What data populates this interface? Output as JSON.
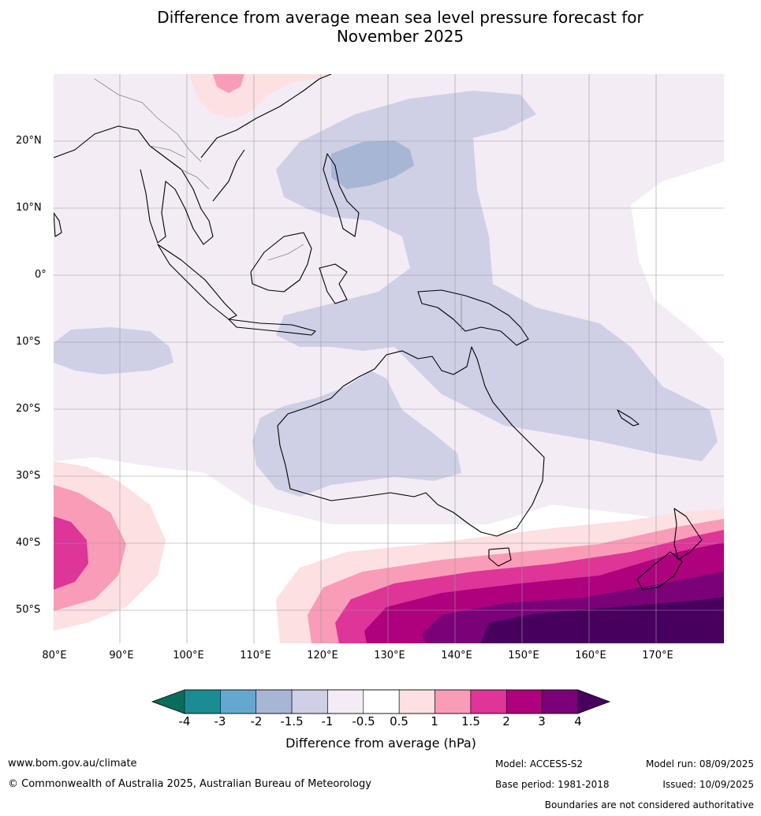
{
  "title": {
    "line1": "Difference from average mean sea level pressure forecast for",
    "line2": "November 2025"
  },
  "map": {
    "lat_labels": [
      "20°N",
      "10°N",
      "0°",
      "10°S",
      "20°S",
      "30°S",
      "40°S",
      "50°S"
    ],
    "lon_labels": [
      "80°E",
      "90°E",
      "100°E",
      "110°E",
      "120°E",
      "130°E",
      "140°E",
      "150°E",
      "160°E",
      "170°E"
    ],
    "extent": {
      "lon": [
        80,
        180
      ],
      "lat": [
        -55,
        30
      ]
    }
  },
  "colorbar": {
    "ticks": [
      "-4",
      "-3",
      "-2",
      "-1.5",
      "-1",
      "-0.5",
      "0.5",
      "1",
      "1.5",
      "2",
      "3",
      "4"
    ],
    "colors": [
      "#1a8c92",
      "#64a8d0",
      "#a8b6d6",
      "#cfd0e6",
      "#f3ecf5",
      "#ffffff",
      "#fde0e1",
      "#f99cb8",
      "#dd3598",
      "#ad017e",
      "#7a0177"
    ],
    "under_color": "#0a6d5c",
    "over_color": "#48005e",
    "label": "Difference from average (hPa)"
  },
  "footer": {
    "website": "www.bom.gov.au/climate",
    "copyright": "© Commonwealth of Australia 2025, Australian Bureau of Meteorology",
    "model": "Model: ACCESS-S2",
    "base_period": "Base period: 1981-2018",
    "model_run": "Model run: 08/09/2025",
    "issued": "Issued: 10/09/2025",
    "disclaimer": "Boundaries are not considered authoritative"
  }
}
